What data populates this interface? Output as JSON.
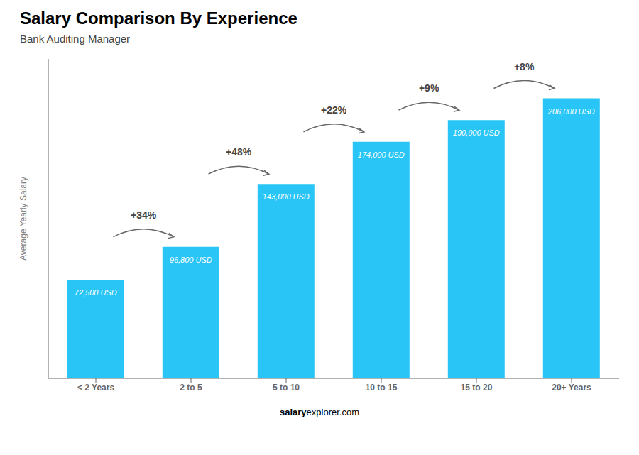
{
  "chart_data": {
    "type": "bar",
    "title": "Salary Comparison By Experience",
    "subtitle": "Bank Auditing Manager",
    "categories": [
      "< 2 Years",
      "2 to 5",
      "5 to 10",
      "10 to 15",
      "15 to 20",
      "20+ Years"
    ],
    "values": [
      72500,
      96800,
      143000,
      174000,
      190000,
      206000
    ],
    "value_labels": [
      "72,500 USD",
      "96,800 USD",
      "143,000 USD",
      "174,000 USD",
      "190,000 USD",
      "206,000 USD"
    ],
    "data_labels": true,
    "color": "#29c5f6",
    "ylabel": "Average Yearly Salary",
    "ylim": [
      0,
      235000
    ],
    "tick_labels": "x",
    "grid": false,
    "annotations": [
      "+34%",
      "+48%",
      "+22%",
      "+9%",
      "+8%"
    ],
    "footer": [
      "salary",
      "explorer.com"
    ]
  }
}
